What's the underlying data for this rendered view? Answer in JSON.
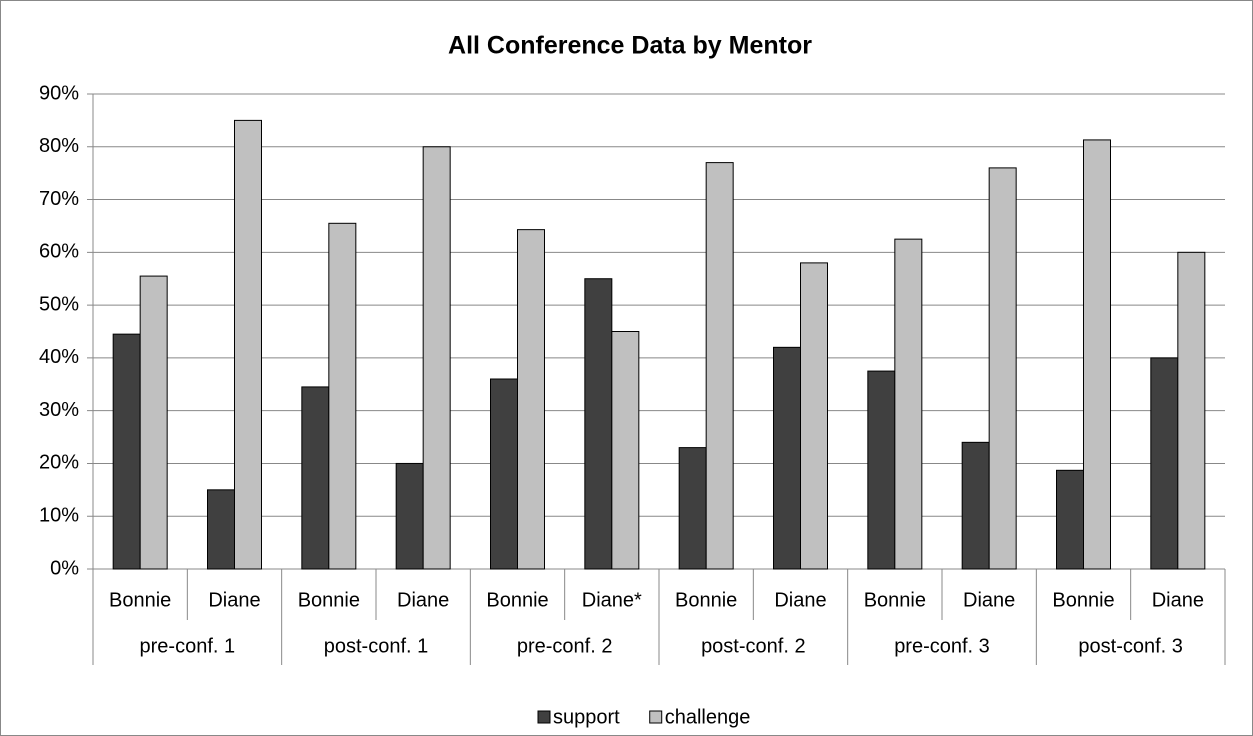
{
  "chart_data": {
    "type": "bar",
    "title": "All Conference Data by Mentor",
    "categories": [
      "Bonnie",
      "Diane",
      "Bonnie",
      "Diane",
      "Bonnie",
      "Diane*",
      "Bonnie",
      "Diane",
      "Bonnie",
      "Diane",
      "Bonnie",
      "Diane"
    ],
    "groups": [
      "pre-conf. 1",
      "post-conf. 1",
      "pre-conf. 2",
      "post-conf. 2",
      "pre-conf. 3",
      "post-conf. 3"
    ],
    "series": [
      {
        "name": "support",
        "color": "#404040",
        "values": [
          44.5,
          15,
          34.5,
          20,
          36,
          55,
          23,
          42,
          37.5,
          24,
          18.7,
          40
        ]
      },
      {
        "name": "challenge",
        "color": "#c0c0c0",
        "values": [
          55.5,
          85,
          65.5,
          80,
          64.3,
          45,
          77,
          58,
          62.5,
          76,
          81.3,
          60
        ]
      }
    ],
    "ylim": [
      0,
      90
    ],
    "yticks": [
      {
        "value": 0,
        "label": "0%"
      },
      {
        "value": 10,
        "label": "10%"
      },
      {
        "value": 20,
        "label": "20%"
      },
      {
        "value": 30,
        "label": "30%"
      },
      {
        "value": 40,
        "label": "40%"
      },
      {
        "value": 50,
        "label": "50%"
      },
      {
        "value": 60,
        "label": "60%"
      },
      {
        "value": 70,
        "label": "70%"
      },
      {
        "value": 80,
        "label": "80%"
      },
      {
        "value": 90,
        "label": "90%"
      }
    ],
    "grid": true,
    "legend": "bottom"
  }
}
